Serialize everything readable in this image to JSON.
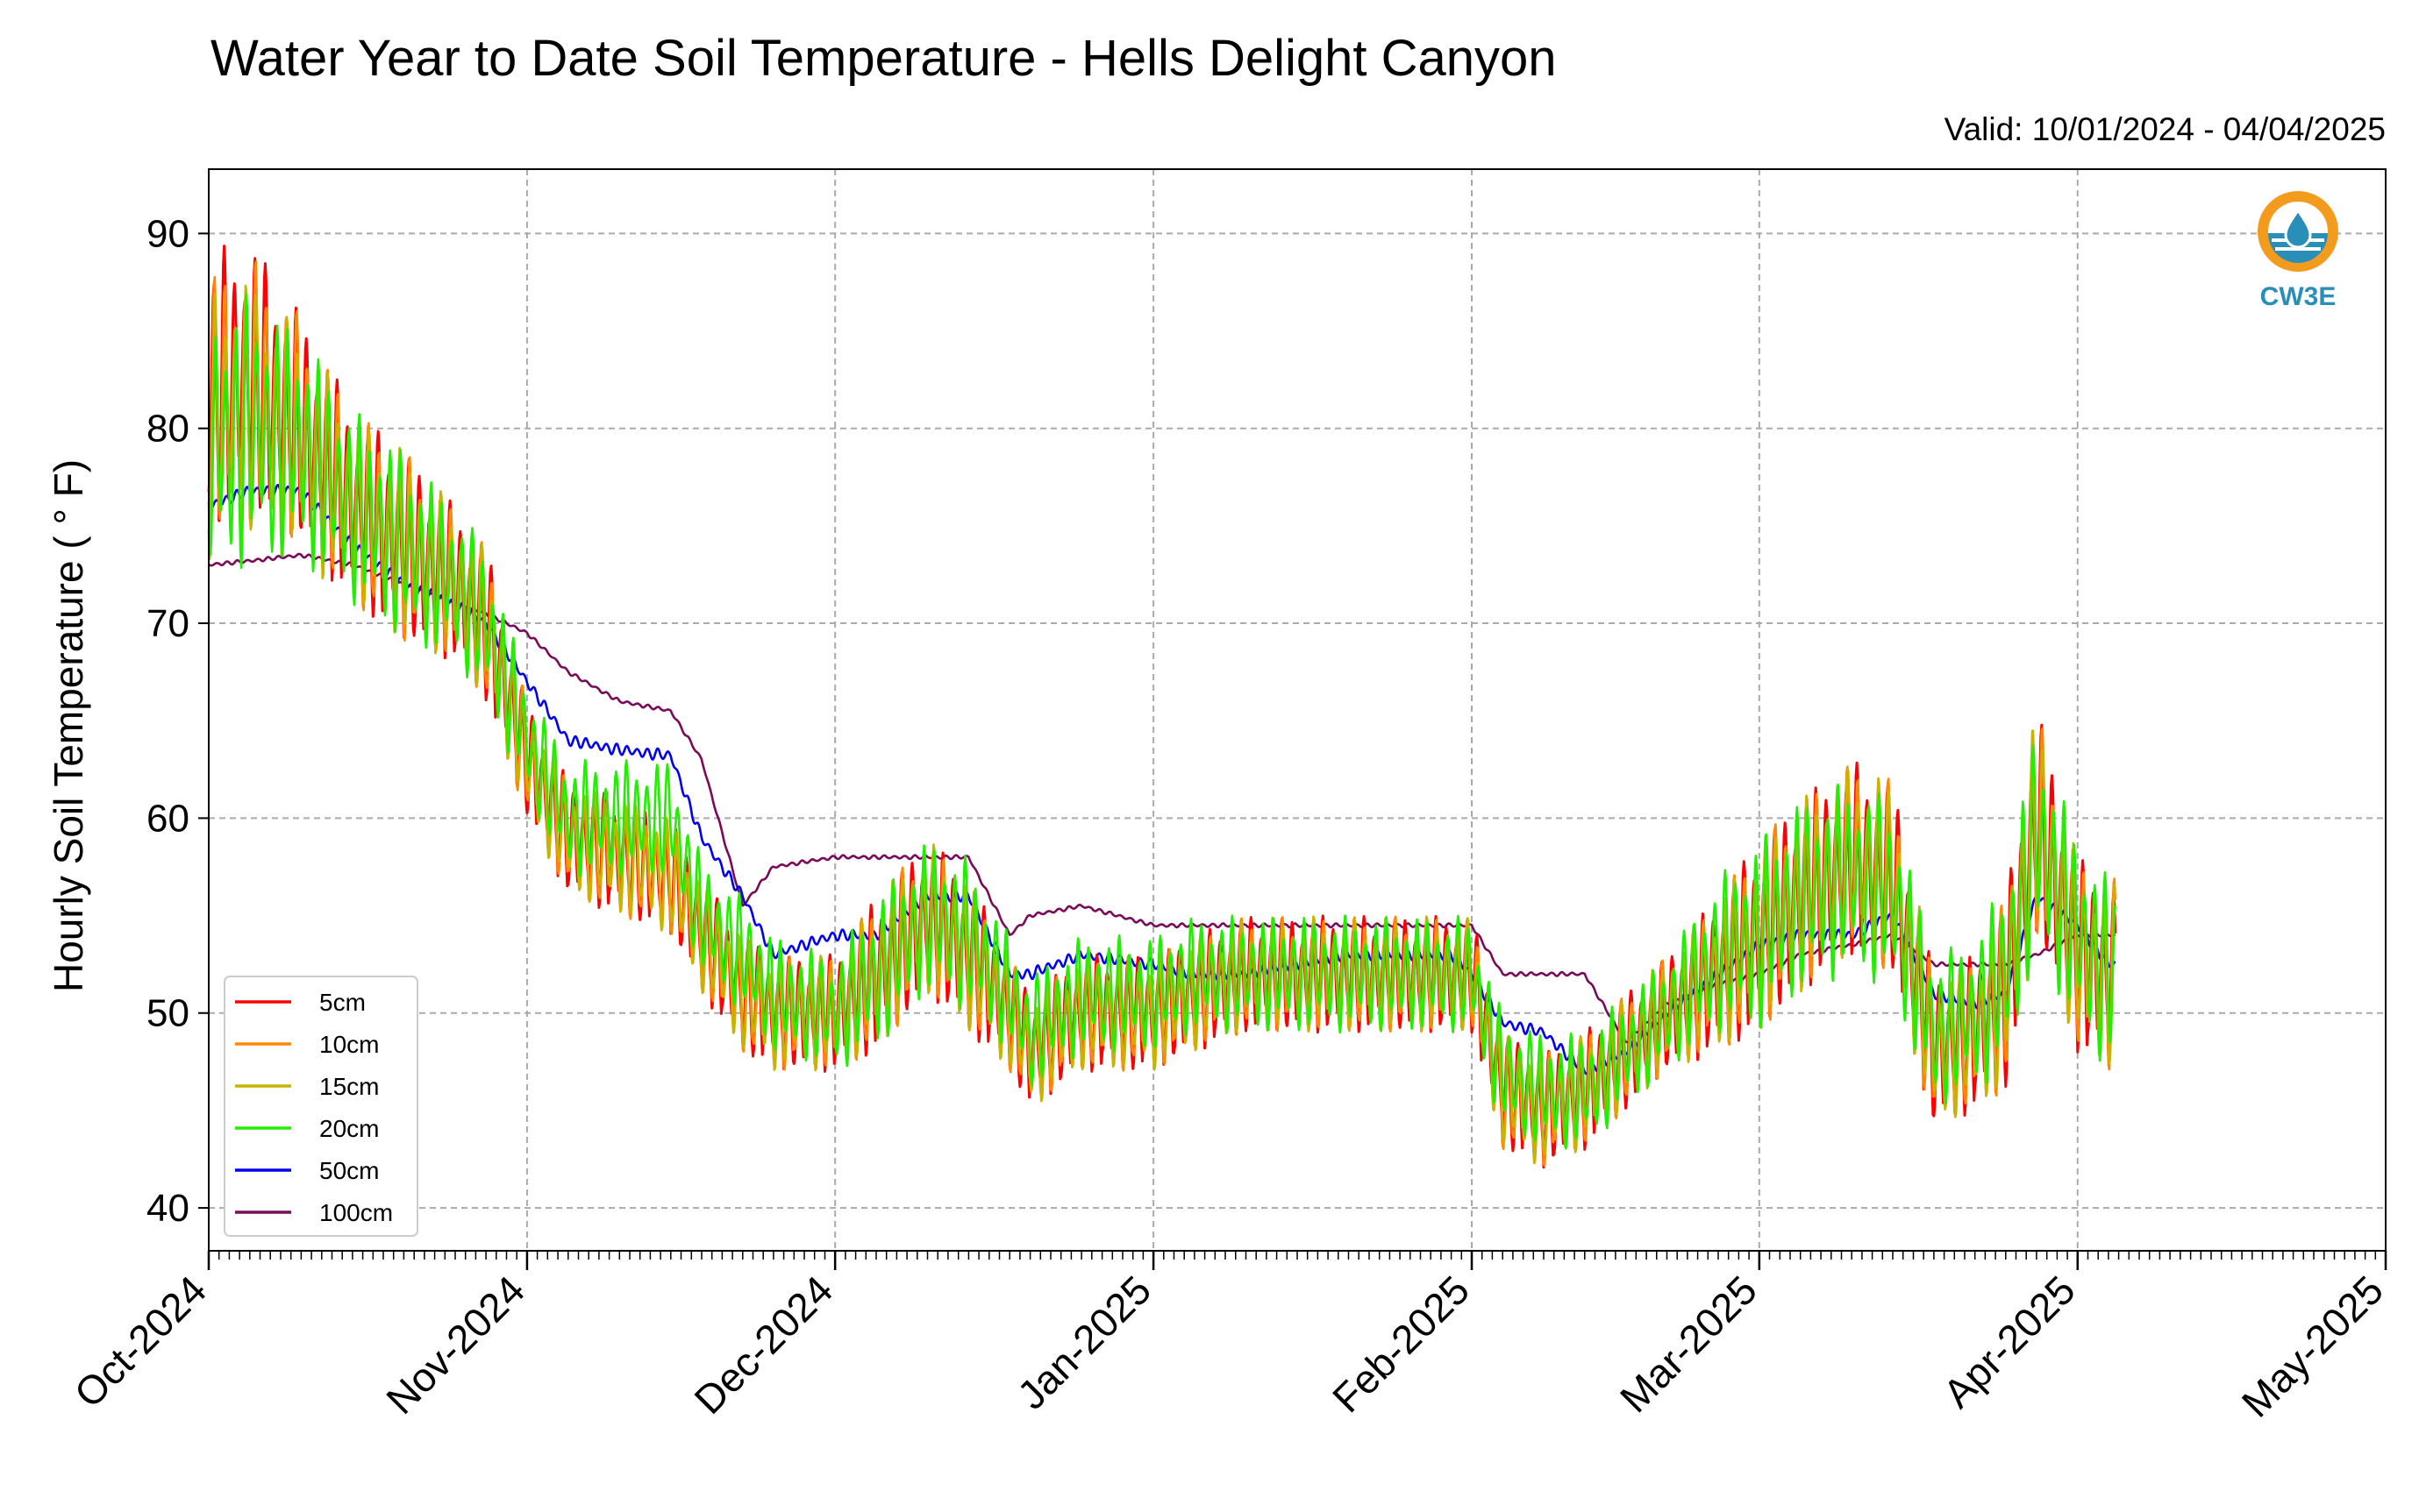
{
  "chart_data": {
    "type": "line",
    "title": "Water Year to Date Soil Temperature - Hells Delight Canyon",
    "subtitle": "Valid: 10/01/2024 - 04/04/2025",
    "xlabel": "",
    "ylabel": "Hourly Soil Temperature ( ° F)",
    "ylim": [
      37.8,
      93.3
    ],
    "xlim": [
      "2024-10-01",
      "2025-05-01"
    ],
    "y_ticks": [
      40,
      50,
      60,
      70,
      80,
      90
    ],
    "x_ticks": [
      "Oct-2024",
      "Nov-2024",
      "Dec-2024",
      "Jan-2025",
      "Feb-2025",
      "Mar-2025",
      "Apr-2025",
      "May-2025"
    ],
    "x_tick_dates": [
      "2024-10-01",
      "2024-11-01",
      "2024-12-01",
      "2025-01-01",
      "2025-02-01",
      "2025-03-01",
      "2025-04-01",
      "2025-05-01"
    ],
    "grid": true,
    "legend_position": "lower-left",
    "daily_amplitude_factor": [
      1.0,
      0.75,
      0.5,
      0.4,
      0.03,
      0.0
    ],
    "series": [
      {
        "name": "5cm",
        "color": "#ff0000",
        "x": [
          "2024-10-01",
          "2024-10-05",
          "2024-10-10",
          "2024-10-15",
          "2024-10-20",
          "2024-10-25",
          "2024-10-28",
          "2024-11-01",
          "2024-11-05",
          "2024-11-10",
          "2024-11-15",
          "2024-11-18",
          "2024-11-22",
          "2024-11-25",
          "2024-12-01",
          "2024-12-05",
          "2024-12-10",
          "2024-12-14",
          "2024-12-18",
          "2024-12-20",
          "2024-12-25",
          "2025-01-01",
          "2025-01-05",
          "2025-01-10",
          "2025-01-15",
          "2025-01-20",
          "2025-01-25",
          "2025-01-30",
          "2025-02-01",
          "2025-02-04",
          "2025-02-08",
          "2025-02-12",
          "2025-02-16",
          "2025-02-20",
          "2025-02-25",
          "2025-03-01",
          "2025-03-05",
          "2025-03-10",
          "2025-03-14",
          "2025-03-18",
          "2025-03-22",
          "2025-03-25",
          "2025-03-28",
          "2025-04-01",
          "2025-04-04"
        ],
        "y": [
          82,
          83,
          80,
          76,
          74,
          72,
          70,
          63,
          59,
          58,
          57,
          54,
          51,
          50,
          50,
          52,
          55,
          53,
          50,
          48,
          50,
          50,
          51,
          52,
          52,
          52,
          52,
          52,
          52,
          46,
          45,
          46,
          48,
          50,
          52,
          54,
          56,
          58,
          57,
          48,
          49,
          51,
          60,
          53,
          52
        ],
        "amp": [
          7,
          7,
          6,
          5,
          5,
          4,
          4,
          3,
          3,
          3,
          3,
          3,
          3,
          3,
          3,
          4,
          4,
          4,
          3,
          3,
          3,
          3,
          3,
          3,
          3,
          3,
          3,
          3,
          3,
          3,
          3,
          3,
          3,
          3,
          4,
          5,
          5,
          5,
          5,
          4,
          4,
          5,
          6,
          5,
          5
        ]
      },
      {
        "name": "10cm",
        "color": "#ff8800",
        "x": [
          "2024-10-01",
          "2024-10-05",
          "2024-10-10",
          "2024-10-15",
          "2024-10-20",
          "2024-10-25",
          "2024-10-28",
          "2024-11-01",
          "2024-11-05",
          "2024-11-10",
          "2024-11-15",
          "2024-11-18",
          "2024-11-22",
          "2024-11-25",
          "2024-12-01",
          "2024-12-05",
          "2024-12-10",
          "2024-12-14",
          "2024-12-18",
          "2024-12-20",
          "2024-12-25",
          "2025-01-01",
          "2025-01-05",
          "2025-01-10",
          "2025-01-15",
          "2025-01-20",
          "2025-01-25",
          "2025-01-30",
          "2025-02-01",
          "2025-02-04",
          "2025-02-08",
          "2025-02-12",
          "2025-02-16",
          "2025-02-20",
          "2025-02-25",
          "2025-03-01",
          "2025-03-05",
          "2025-03-10",
          "2025-03-14",
          "2025-03-18",
          "2025-03-22",
          "2025-03-25",
          "2025-03-28",
          "2025-04-01",
          "2025-04-04"
        ],
        "y": [
          81,
          82,
          80,
          76,
          74,
          72,
          70,
          63,
          59,
          58,
          57,
          54,
          51,
          50,
          50,
          52,
          55,
          53,
          50,
          48,
          50,
          50,
          51,
          52,
          52,
          52,
          52,
          52,
          52,
          46,
          45,
          46,
          48,
          50,
          52,
          54,
          56,
          58,
          57,
          48,
          49,
          51,
          60,
          53,
          52
        ],
        "amp": [
          7,
          7,
          6,
          5,
          5,
          4,
          4,
          3,
          3,
          3,
          3,
          3,
          3,
          3,
          3,
          4,
          4,
          4,
          3,
          3,
          3,
          3,
          3,
          3,
          3,
          3,
          3,
          3,
          3,
          3,
          3,
          3,
          3,
          3,
          4,
          5,
          5,
          5,
          5,
          4,
          4,
          5,
          6,
          5,
          5
        ]
      },
      {
        "name": "15cm",
        "color": "#c8b400",
        "x": [
          "2024-10-01",
          "2024-10-05",
          "2024-10-10",
          "2024-10-15",
          "2024-10-20",
          "2024-10-25",
          "2024-10-28",
          "2024-11-01",
          "2024-11-05",
          "2024-11-10",
          "2024-11-15",
          "2024-11-18",
          "2024-11-22",
          "2024-11-25",
          "2024-12-01",
          "2024-12-05",
          "2024-12-10",
          "2024-12-14",
          "2024-12-18",
          "2024-12-20",
          "2024-12-25",
          "2025-01-01",
          "2025-01-05",
          "2025-01-10",
          "2025-01-15",
          "2025-01-20",
          "2025-01-25",
          "2025-01-30",
          "2025-02-01",
          "2025-02-04",
          "2025-02-08",
          "2025-02-12",
          "2025-02-16",
          "2025-02-20",
          "2025-02-25",
          "2025-03-01",
          "2025-03-05",
          "2025-03-10",
          "2025-03-14",
          "2025-03-18",
          "2025-03-22",
          "2025-03-25",
          "2025-03-28",
          "2025-04-01",
          "2025-04-04"
        ],
        "y": [
          80,
          81,
          79,
          76,
          74,
          72,
          70,
          63,
          59,
          58,
          57,
          54,
          51,
          50,
          50,
          52,
          55,
          53,
          50,
          48,
          50,
          50,
          51,
          52,
          52,
          52,
          52,
          52,
          52,
          46,
          45,
          46,
          48,
          50,
          52,
          54,
          56,
          58,
          57,
          48,
          49,
          51,
          60,
          53,
          52
        ],
        "amp": [
          7,
          7,
          6,
          5,
          5,
          4,
          4,
          3,
          3,
          3,
          3,
          3,
          3,
          3,
          3,
          4,
          4,
          4,
          3,
          3,
          3,
          3,
          3,
          3,
          3,
          3,
          3,
          3,
          3,
          3,
          3,
          3,
          3,
          3,
          4,
          5,
          5,
          5,
          5,
          4,
          4,
          5,
          6,
          5,
          5
        ]
      },
      {
        "name": "20cm",
        "color": "#22ee00",
        "x": [
          "2024-10-01",
          "2024-10-05",
          "2024-10-10",
          "2024-10-15",
          "2024-10-20",
          "2024-10-25",
          "2024-10-28",
          "2024-11-01",
          "2024-11-05",
          "2024-11-10",
          "2024-11-15",
          "2024-11-18",
          "2024-11-22",
          "2024-11-25",
          "2024-12-01",
          "2024-12-05",
          "2024-12-10",
          "2024-12-14",
          "2024-12-18",
          "2024-12-20",
          "2024-12-25",
          "2025-01-01",
          "2025-01-05",
          "2025-01-10",
          "2025-01-15",
          "2025-01-20",
          "2025-01-25",
          "2025-01-30",
          "2025-02-01",
          "2025-02-04",
          "2025-02-08",
          "2025-02-12",
          "2025-02-16",
          "2025-02-20",
          "2025-02-25",
          "2025-03-01",
          "2025-03-05",
          "2025-03-10",
          "2025-03-14",
          "2025-03-18",
          "2025-03-22",
          "2025-03-25",
          "2025-03-28",
          "2025-04-01",
          "2025-04-04"
        ],
        "y": [
          79,
          80,
          79,
          76,
          74,
          72,
          70,
          64,
          60,
          60,
          60,
          55,
          53,
          51,
          50,
          52,
          55,
          54,
          51,
          49,
          51,
          51,
          52,
          52,
          52,
          52,
          52,
          52,
          52,
          47,
          46,
          46,
          48,
          50,
          53,
          54,
          56,
          57,
          56,
          49,
          50,
          52,
          59,
          54,
          52
        ],
        "amp": [
          7,
          7,
          6,
          5,
          5,
          4,
          4,
          3,
          3,
          3,
          3,
          3,
          3,
          3,
          3,
          4,
          4,
          4,
          3,
          3,
          3,
          3,
          3,
          3,
          3,
          3,
          3,
          3,
          3,
          3,
          3,
          3,
          3,
          3,
          4,
          5,
          5,
          5,
          5,
          4,
          4,
          5,
          6,
          5,
          5
        ]
      },
      {
        "name": "50cm",
        "color": "#0000ee",
        "x": [
          "2024-10-01",
          "2024-10-05",
          "2024-10-10",
          "2024-10-15",
          "2024-10-20",
          "2024-10-25",
          "2024-10-28",
          "2024-11-01",
          "2024-11-05",
          "2024-11-10",
          "2024-11-15",
          "2024-11-18",
          "2024-11-22",
          "2024-11-25",
          "2024-12-01",
          "2024-12-05",
          "2024-12-10",
          "2024-12-14",
          "2024-12-18",
          "2024-12-20",
          "2024-12-25",
          "2025-01-01",
          "2025-01-05",
          "2025-01-10",
          "2025-01-15",
          "2025-01-20",
          "2025-01-25",
          "2025-01-30",
          "2025-02-01",
          "2025-02-04",
          "2025-02-08",
          "2025-02-12",
          "2025-02-16",
          "2025-02-20",
          "2025-02-25",
          "2025-03-01",
          "2025-03-05",
          "2025-03-10",
          "2025-03-14",
          "2025-03-18",
          "2025-03-22",
          "2025-03-25",
          "2025-03-28",
          "2025-04-01",
          "2025-04-04"
        ],
        "y": [
          76,
          76.8,
          76.8,
          74,
          72,
          71,
          70,
          67,
          64,
          63.5,
          63.2,
          59,
          56,
          53,
          54,
          54,
          56,
          56,
          52,
          52,
          53,
          52.5,
          52,
          52,
          52.5,
          53,
          53,
          53,
          52,
          49.5,
          49,
          47,
          48,
          50,
          52,
          53.5,
          54,
          54,
          55,
          51,
          50.5,
          51,
          56,
          54.5,
          52.5
        ],
        "amp": [
          0.3,
          0.3,
          0.3,
          0.3,
          0.3,
          0.3,
          0.3,
          0.3,
          0.3,
          0.3,
          0.3,
          0.3,
          0.3,
          0.3,
          0.3,
          0.3,
          0.3,
          0.3,
          0.3,
          0.3,
          0.3,
          0.3,
          0.3,
          0.3,
          0.3,
          0.3,
          0.3,
          0.3,
          0.3,
          0.3,
          0.3,
          0.3,
          0.3,
          0.3,
          0.3,
          0.3,
          0.3,
          0.3,
          0.3,
          0.3,
          0.3,
          0.3,
          0.3,
          0.3,
          0.3
        ]
      },
      {
        "name": "100cm",
        "color": "#7a0a5a",
        "x": [
          "2024-10-01",
          "2024-10-05",
          "2024-10-10",
          "2024-10-15",
          "2024-10-20",
          "2024-10-25",
          "2024-10-28",
          "2024-11-01",
          "2024-11-05",
          "2024-11-10",
          "2024-11-15",
          "2024-11-18",
          "2024-11-22",
          "2024-11-25",
          "2024-12-01",
          "2024-12-05",
          "2024-12-10",
          "2024-12-14",
          "2024-12-18",
          "2024-12-20",
          "2024-12-25",
          "2025-01-01",
          "2025-01-05",
          "2025-01-10",
          "2025-01-15",
          "2025-01-20",
          "2025-01-25",
          "2025-01-30",
          "2025-02-01",
          "2025-02-04",
          "2025-02-08",
          "2025-02-12",
          "2025-02-16",
          "2025-02-20",
          "2025-02-25",
          "2025-03-01",
          "2025-03-05",
          "2025-03-10",
          "2025-03-14",
          "2025-03-18",
          "2025-03-22",
          "2025-03-25",
          "2025-03-28",
          "2025-04-01",
          "2025-04-04"
        ],
        "y": [
          73,
          73.2,
          73.5,
          73,
          72,
          71,
          70.5,
          69.5,
          67.5,
          66,
          65.5,
          63,
          55.5,
          57.5,
          58,
          58,
          58,
          58,
          54,
          55,
          55.5,
          54.5,
          54.5,
          54.5,
          54.5,
          54.5,
          54.5,
          54.5,
          54.5,
          52,
          52,
          52,
          48.5,
          50.5,
          51.5,
          52,
          53,
          53.5,
          54,
          52.5,
          52.5,
          52.5,
          53,
          54,
          54
        ],
        "amp": [
          0.1,
          0.1,
          0.1,
          0.1,
          0.1,
          0.1,
          0.1,
          0.1,
          0.1,
          0.1,
          0.1,
          0.1,
          0.1,
          0.1,
          0.1,
          0.1,
          0.1,
          0.1,
          0.1,
          0.1,
          0.1,
          0.1,
          0.1,
          0.1,
          0.1,
          0.1,
          0.1,
          0.1,
          0.1,
          0.1,
          0.1,
          0.1,
          0.1,
          0.1,
          0.1,
          0.1,
          0.1,
          0.1,
          0.1,
          0.1,
          0.1,
          0.1,
          0.1,
          0.1,
          0.1
        ]
      }
    ]
  },
  "logo": {
    "text": "CW3E",
    "icon": "water-drop-icon",
    "colors": {
      "ring": "#f29b1d",
      "water": "#2a8fb8",
      "drop": "#ffffff"
    }
  }
}
